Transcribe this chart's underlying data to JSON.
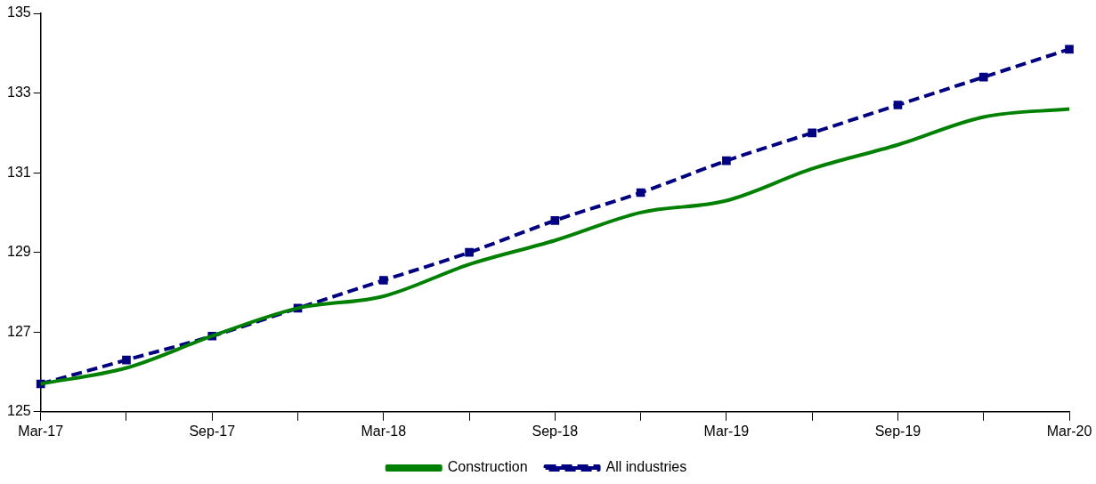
{
  "chart_data": {
    "type": "line",
    "categories": [
      "Mar-17",
      null,
      "Sep-17",
      null,
      "Mar-18",
      null,
      "Sep-18",
      null,
      "Mar-19",
      null,
      "Sep-19",
      null,
      "Mar-20"
    ],
    "series": [
      {
        "name": "Construction",
        "color": "#008000",
        "line_style": "solid",
        "marker": "none",
        "values": [
          125.7,
          126.1,
          126.9,
          127.6,
          127.9,
          128.7,
          129.3,
          130.0,
          130.3,
          131.1,
          131.7,
          132.4,
          132.6
        ]
      },
      {
        "name": "All industries",
        "color": "#000080",
        "line_style": "dashed",
        "marker": "square",
        "values": [
          125.7,
          126.3,
          126.9,
          127.6,
          128.3,
          129.0,
          129.8,
          130.5,
          131.3,
          132.0,
          132.7,
          133.4,
          134.1
        ]
      }
    ],
    "ylim": [
      125,
      135
    ],
    "yticks": [
      125,
      127,
      129,
      131,
      133,
      135
    ],
    "grid": false,
    "legend": "bottom"
  }
}
